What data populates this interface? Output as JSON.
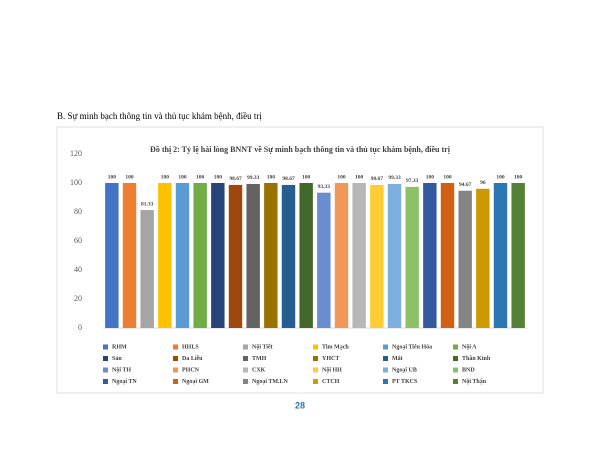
{
  "heading": "B. Sự minh bạch thông tin và thủ tục khám bệnh, điều trị",
  "page_number": "28",
  "chart_data": {
    "type": "bar",
    "title": "Đồ thị 2: Tỷ lệ hài lòng BNNT về Sự minh bạch thông tin và thủ tục khám bệnh, điều trị",
    "ylim": [
      0,
      120
    ],
    "yticks": [
      0,
      20,
      40,
      60,
      80,
      100,
      120
    ],
    "grid": false,
    "legend": "bottom",
    "series": [
      {
        "name": "RHM",
        "color": "#4472c4",
        "values": [
          100
        ]
      },
      {
        "name": "HHLS",
        "color": "#ed7d31",
        "values": [
          100
        ]
      },
      {
        "name": "Nội Tiết",
        "color": "#a5a5a5",
        "values": [
          81.33
        ]
      },
      {
        "name": "Tim Mạch",
        "color": "#ffc000",
        "values": [
          100
        ]
      },
      {
        "name": "Ngoại Tiêu Hóa",
        "color": "#5b9bd5",
        "values": [
          100
        ]
      },
      {
        "name": "Nội A",
        "color": "#70ad47",
        "values": [
          100
        ]
      },
      {
        "name": "Sản",
        "color": "#264478",
        "values": [
          100
        ]
      },
      {
        "name": "Da Liễu",
        "color": "#9e480e",
        "values": [
          98.67
        ]
      },
      {
        "name": "TMH",
        "color": "#636363",
        "values": [
          99.33
        ]
      },
      {
        "name": "YHCT",
        "color": "#997300",
        "values": [
          100
        ]
      },
      {
        "name": "Mắt",
        "color": "#255e91",
        "values": [
          98.67
        ]
      },
      {
        "name": "Thần Kinh",
        "color": "#43682b",
        "values": [
          100
        ]
      },
      {
        "name": "Nội TH",
        "color": "#698ed0",
        "values": [
          93.33
        ]
      },
      {
        "name": "PHCN",
        "color": "#f1975a",
        "values": [
          100
        ]
      },
      {
        "name": "CXK",
        "color": "#b7b7b7",
        "values": [
          100
        ]
      },
      {
        "name": "Nội HH",
        "color": "#ffcd33",
        "values": [
          98.67
        ]
      },
      {
        "name": "Ngoại UB",
        "color": "#7cafdd",
        "values": [
          99.33
        ]
      },
      {
        "name": "BND",
        "color": "#8cc168",
        "values": [
          97.33
        ]
      },
      {
        "name": "Ngoại TN",
        "color": "#335aa1",
        "values": [
          100
        ]
      },
      {
        "name": "Ngoại GM",
        "color": "#d26012",
        "values": [
          100
        ]
      },
      {
        "name": "Ngoại TM.LN",
        "color": "#848484",
        "values": [
          94.67
        ]
      },
      {
        "name": "CTCH",
        "color": "#cc9a00",
        "values": [
          96
        ]
      },
      {
        "name": "PT TKCS",
        "color": "#2e75b6",
        "values": [
          100
        ]
      },
      {
        "name": "Nội Thận",
        "color": "#548235",
        "values": [
          100
        ]
      }
    ]
  }
}
